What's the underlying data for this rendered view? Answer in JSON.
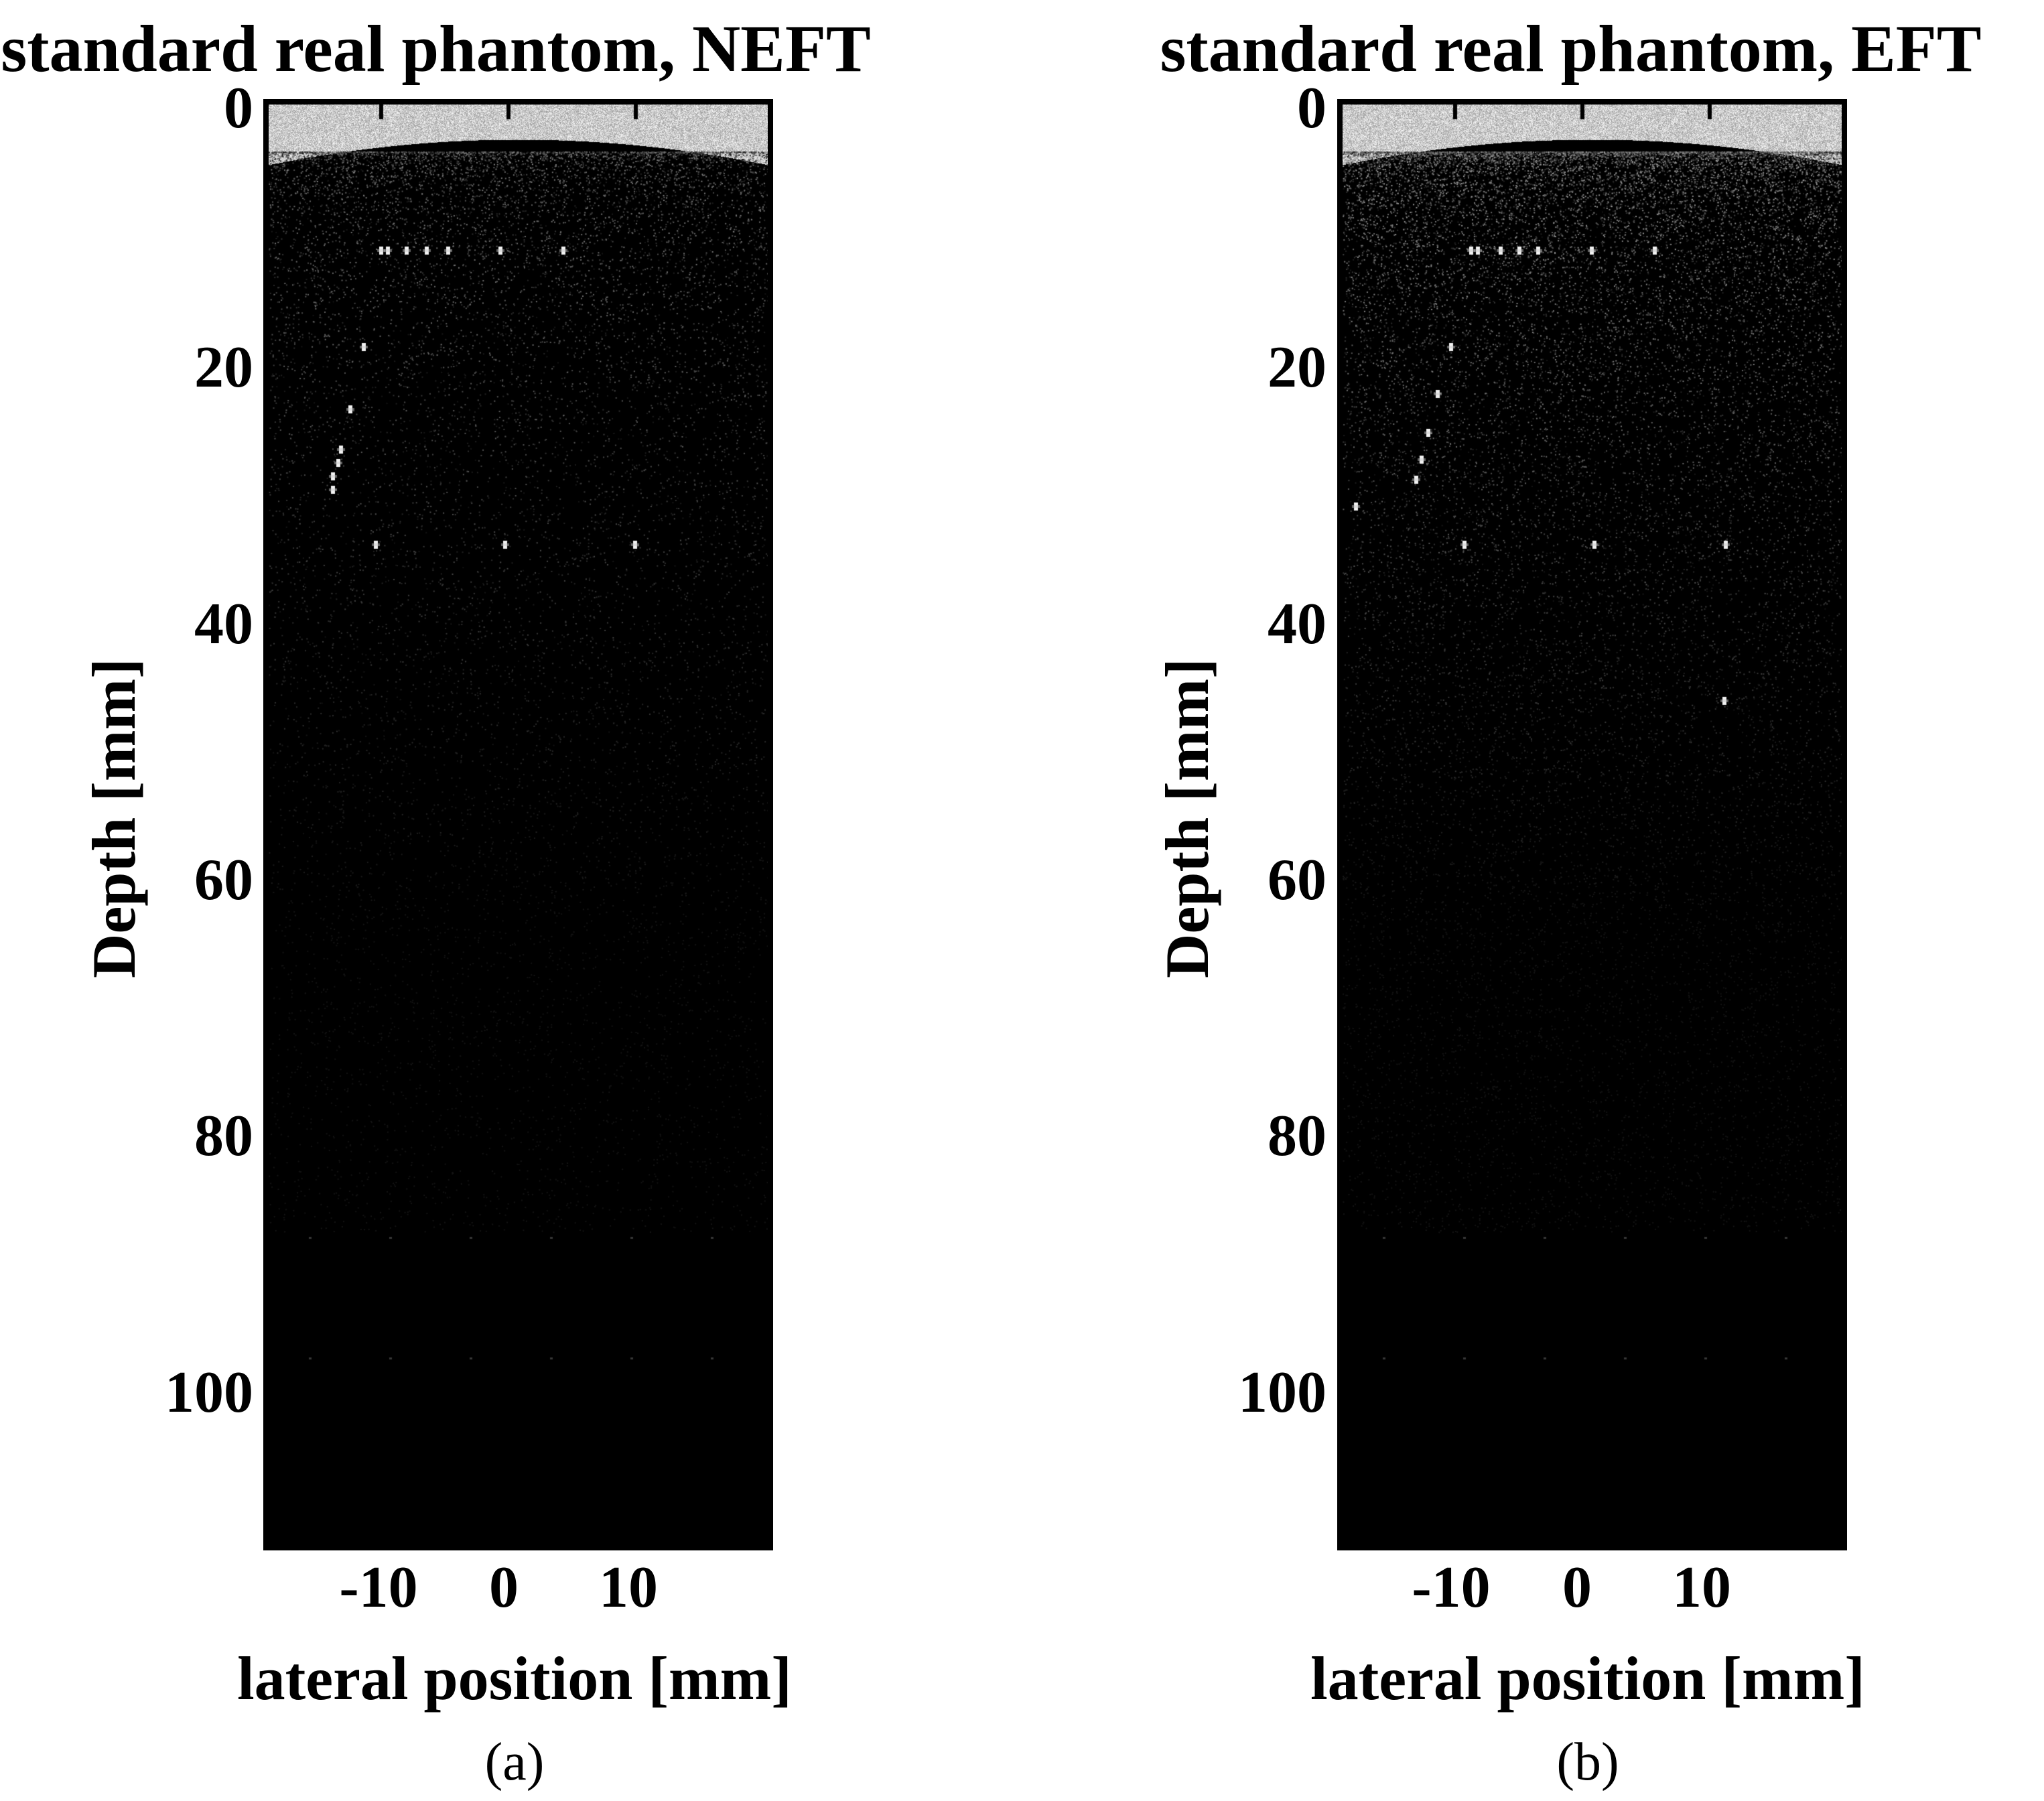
{
  "panels": [
    {
      "title": "standard real phantom, NEFT",
      "caption": "(a)",
      "xlabel": "lateral position [mm]",
      "ylabel": "Depth [mm]",
      "xticks": [
        "-10",
        "0",
        "10"
      ],
      "yticks": [
        "0",
        "20",
        "40",
        "60",
        "80",
        "100"
      ],
      "colormap": "gray",
      "image_type": "ultrasound B-mode",
      "noise_level": 0.35
    },
    {
      "title": "standard real phantom, EFT",
      "caption": "(b)",
      "xlabel": "lateral position [mm]",
      "ylabel": "Depth [mm]",
      "xticks": [
        "-10",
        "0",
        "10"
      ],
      "yticks": [
        "0",
        "20",
        "40",
        "60",
        "80",
        "100"
      ],
      "colormap": "gray",
      "image_type": "ultrasound B-mode",
      "noise_level": 0.6
    }
  ]
}
